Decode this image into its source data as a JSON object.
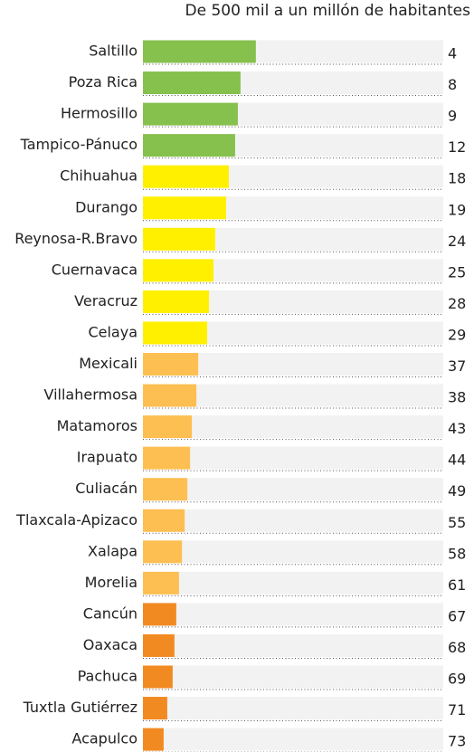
{
  "chart_data": {
    "type": "hbar",
    "title": "De 500 mil a un millón de habitantes",
    "categories": [
      "Saltillo",
      "Poza Rica",
      "Hermosillo",
      "Tampico-Pánuco",
      "Chihuahua",
      "Durango",
      "Reynosa-R.Bravo",
      "Cuernavaca",
      "Veracruz",
      "Celaya",
      "Mexicali",
      "Villahermosa",
      "Matamoros",
      "Irapuato",
      "Culiacán",
      "Tlaxcala-Apizaco",
      "Xalapa",
      "Morelia",
      "Cancún",
      "Oaxaca",
      "Pachuca",
      "Tuxtla Gutiérrez",
      "Acapulco"
    ],
    "values": [
      37.6,
      32.5,
      31.6,
      30.7,
      28.6,
      27.7,
      24.1,
      23.5,
      22,
      21.4,
      18.4,
      17.8,
      16.3,
      15.7,
      14.8,
      13.9,
      13,
      12,
      11.1,
      10.5,
      9.9,
      8.1,
      6.9
    ],
    "ranks": [
      4,
      8,
      9,
      12,
      18,
      19,
      24,
      25,
      28,
      29,
      37,
      38,
      43,
      44,
      49,
      55,
      58,
      61,
      67,
      68,
      69,
      71,
      73
    ],
    "colors": [
      "#86c04d",
      "#86c04d",
      "#86c04d",
      "#86c04d",
      "#fff000",
      "#fff000",
      "#fff000",
      "#fff000",
      "#fff000",
      "#fff000",
      "#fdbf52",
      "#fdbf52",
      "#fdbf52",
      "#fdbf52",
      "#fdbf52",
      "#fdbf52",
      "#fdbf52",
      "#fdbf52",
      "#f28a22",
      "#f28a22",
      "#f28a22",
      "#f28a22",
      "#f28a22"
    ],
    "xlim": [
      0,
      100
    ]
  }
}
